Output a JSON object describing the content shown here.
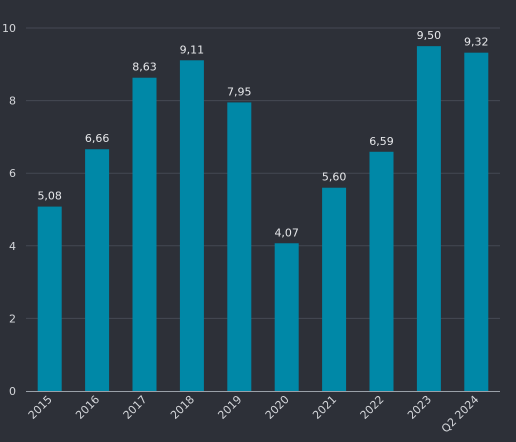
{
  "chart_data": {
    "type": "bar",
    "title": "",
    "xlabel": "",
    "ylabel": "",
    "categories": [
      "2015",
      "2016",
      "2017",
      "2018",
      "2019",
      "2020",
      "2021",
      "2022",
      "2023",
      "Q2 2024"
    ],
    "values": [
      5.08,
      6.66,
      8.63,
      9.11,
      7.95,
      4.07,
      5.6,
      6.59,
      9.5,
      9.32
    ],
    "data_labels": [
      "5,08",
      "6,66",
      "8,63",
      "9,11",
      "7,95",
      "4,07",
      "5,60",
      "6,59",
      "9,50",
      "9,32"
    ],
    "ylim": [
      0,
      10
    ],
    "y_ticks": [
      0,
      2,
      4,
      6,
      8,
      10
    ],
    "y_tick_labels": [
      "0",
      "2",
      "4",
      "6",
      "8",
      "10"
    ],
    "grid": true,
    "legend": "none",
    "bar_color": "#0088a7",
    "background_color": "#2d3038"
  }
}
